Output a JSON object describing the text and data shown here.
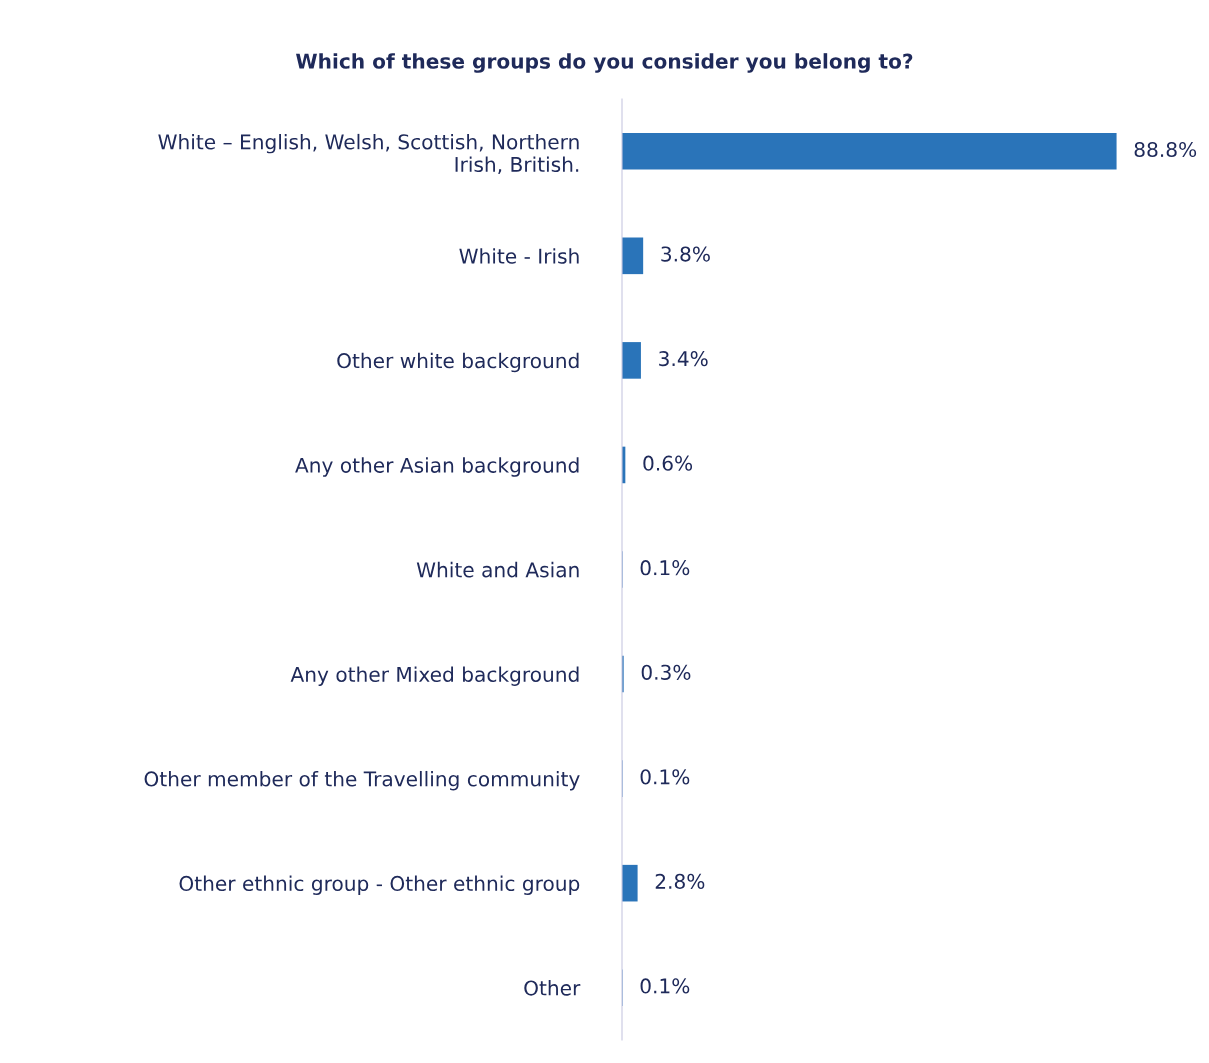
{
  "chart_data": {
    "type": "bar",
    "orientation": "horizontal",
    "title": "Which of these groups do you consider you belong to?",
    "categories": [
      "White – English, Welsh, Scottish, Northern\nIrish, British.",
      "White - Irish",
      "Other white background",
      "Any other Asian background",
      "White and Asian",
      "Any other Mixed background",
      "Other member of the Travelling community",
      "Other ethnic group - Other ethnic group",
      "Other"
    ],
    "values": [
      88.8,
      3.8,
      3.4,
      0.6,
      0.1,
      0.3,
      0.1,
      2.8,
      0.1
    ],
    "value_labels": [
      "88.8%",
      "3.8%",
      "3.4%",
      "0.6%",
      "0.1%",
      "0.3%",
      "0.1%",
      "2.8%",
      "0.1%"
    ],
    "color": "#2a74b9",
    "grid": false,
    "legend": false
  }
}
